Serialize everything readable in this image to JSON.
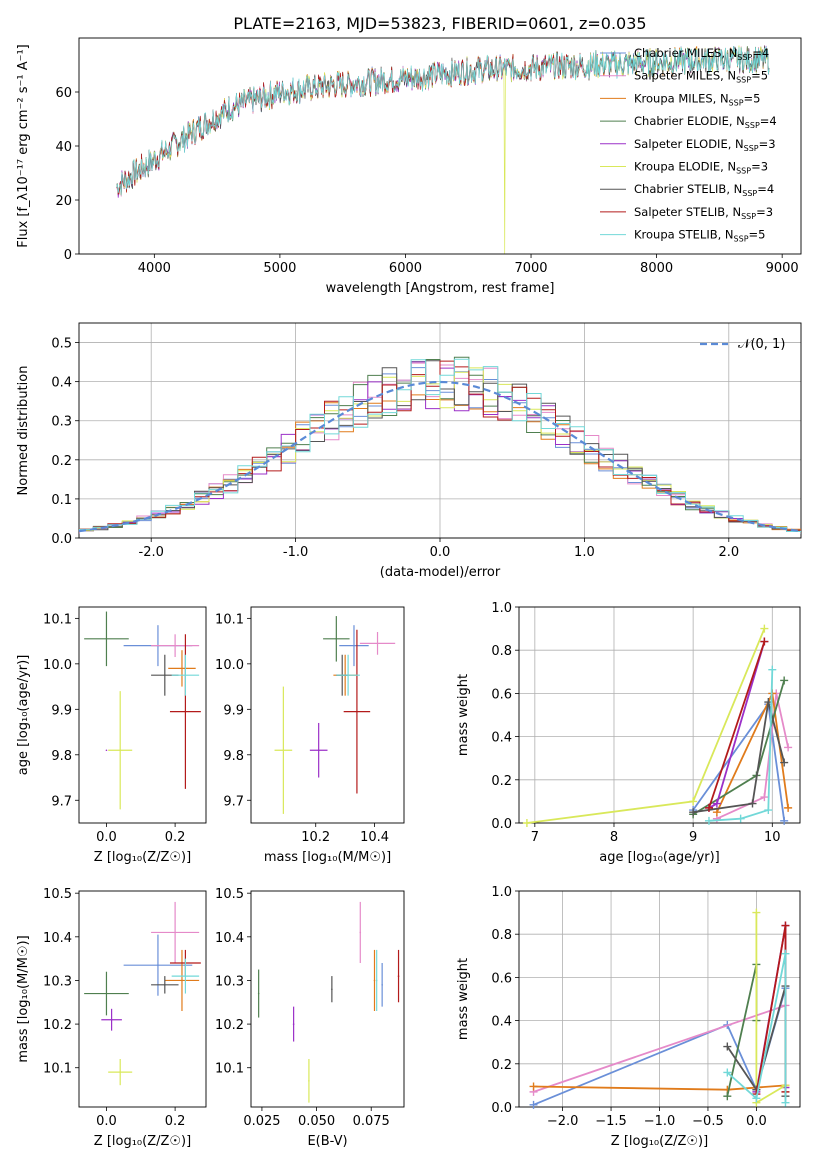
{
  "figure": {
    "title": "PLATE=2163, MJD=53823, FIBERID=0601, z=0.035"
  },
  "models": [
    {
      "name": "Chabrier MILES",
      "nssp": "4",
      "color": "#6a8fd8"
    },
    {
      "name": "Salpeter MILES",
      "nssp": "5",
      "color": "#e58ac9"
    },
    {
      "name": "Kroupa MILES",
      "nssp": "5",
      "color": "#e07b1b"
    },
    {
      "name": "Chabrier ELODIE",
      "nssp": "4",
      "color": "#4f7f4f"
    },
    {
      "name": "Salpeter ELODIE",
      "nssp": "3",
      "color": "#9b30c8"
    },
    {
      "name": "Kroupa ELODIE",
      "nssp": "3",
      "color": "#d9e85a"
    },
    {
      "name": "Chabrier STELIB",
      "nssp": "4",
      "color": "#555555"
    },
    {
      "name": "Salpeter STELIB",
      "nssp": "3",
      "color": "#b31b1b"
    },
    {
      "name": "Kroupa STELIB",
      "nssp": "5",
      "color": "#72d8d8"
    }
  ],
  "chart_data": [
    {
      "id": "spectrum",
      "type": "line",
      "xlabel": "wavelength [Angstrom, rest frame]",
      "ylabel": "Flux [f_λ10⁻¹⁷ erg cm⁻² s⁻¹ A⁻¹]",
      "xlim": [
        3400,
        9150
      ],
      "ylim": [
        0,
        80
      ],
      "xticks": [
        4000,
        5000,
        6000,
        7000,
        8000,
        9000
      ],
      "yticks": [
        0,
        20,
        40,
        60
      ],
      "grid": false,
      "legend": "upper right",
      "continuum_x": [
        3700,
        4000,
        4300,
        4600,
        5000,
        5500,
        6000,
        6500,
        7000,
        7500,
        8000,
        8500,
        8900
      ],
      "continuum_y": [
        25,
        35,
        45,
        54,
        60,
        63,
        65,
        68,
        69,
        70,
        71,
        72,
        72
      ]
    },
    {
      "id": "residuals",
      "type": "histogram",
      "xlabel": "(data-model)/error",
      "ylabel": "Normed distribution",
      "xlim": [
        -2.5,
        2.5
      ],
      "ylim": [
        0,
        0.55
      ],
      "xticks": [
        -2,
        -1,
        0,
        1,
        2
      ],
      "yticks": [
        0.0,
        0.1,
        0.2,
        0.3,
        0.4,
        0.5
      ],
      "grid": true,
      "legend": "upper right",
      "reference": {
        "label": "𝒩(0, 1)",
        "mean": 0,
        "sigma": 1,
        "color": "#5a8ad6"
      },
      "bin_width": 0.1
    },
    {
      "id": "age_vs_Z",
      "type": "scatter",
      "xlabel": "Z [log₁₀(Z/Z☉)]",
      "ylabel": "age  [log₁₀(age/yr)]",
      "xlim": [
        -0.08,
        0.29
      ],
      "ylim": [
        9.65,
        10.125
      ],
      "xticks": [
        0.0,
        0.2
      ],
      "yticks": [
        9.7,
        9.8,
        9.9,
        10.0,
        10.1
      ],
      "points": [
        {
          "x": 0.15,
          "y": 10.04,
          "xerr": 0.1,
          "yerr": 0.045
        },
        {
          "x": 0.2,
          "y": 10.04,
          "xerr": 0.07,
          "yerr": 0.025
        },
        {
          "x": 0.22,
          "y": 9.99,
          "xerr": 0.04,
          "yerr": 0.04
        },
        {
          "x": 0.0,
          "y": 10.055,
          "xerr": 0.065,
          "yerr": 0.06
        },
        {
          "x": 0.0,
          "y": 9.81,
          "xerr": 0.0,
          "yerr": 0.0
        },
        {
          "x": 0.04,
          "y": 9.81,
          "xerr": 0.035,
          "yerr": 0.13
        },
        {
          "x": 0.17,
          "y": 9.975,
          "xerr": 0.04,
          "yerr": 0.045
        },
        {
          "x": 0.23,
          "y": 9.895,
          "xerr": 0.045,
          "yerr": 0.17
        },
        {
          "x": 0.23,
          "y": 9.975,
          "xerr": 0.04,
          "yerr": 0.045
        }
      ]
    },
    {
      "id": "age_vs_mass",
      "type": "scatter",
      "xlabel": "mass [log₁₀(M/M☉)]",
      "ylabel": "",
      "xlim": [
        9.98,
        10.5
      ],
      "ylim": [
        9.65,
        10.125
      ],
      "xticks": [
        10.2,
        10.4
      ],
      "yticks": [
        9.7,
        9.8,
        9.9,
        10.0,
        10.1
      ],
      "points": [
        {
          "x": 10.33,
          "y": 10.04,
          "xerr": 0.05,
          "yerr": 0.045
        },
        {
          "x": 10.41,
          "y": 10.045,
          "xerr": 0.06,
          "yerr": 0.025
        },
        {
          "x": 10.3,
          "y": 9.975,
          "xerr": 0.04,
          "yerr": 0.045
        },
        {
          "x": 10.27,
          "y": 10.055,
          "xerr": 0.045,
          "yerr": 0.05
        },
        {
          "x": 10.21,
          "y": 9.81,
          "xerr": 0.03,
          "yerr": 0.06
        },
        {
          "x": 10.09,
          "y": 9.81,
          "xerr": 0.03,
          "yerr": 0.14
        },
        {
          "x": 10.29,
          "y": 9.975,
          "xerr": 0.02,
          "yerr": 0.045
        },
        {
          "x": 10.34,
          "y": 9.895,
          "xerr": 0.045,
          "yerr": 0.18
        },
        {
          "x": 10.31,
          "y": 9.975,
          "xerr": 0.04,
          "yerr": 0.045
        }
      ]
    },
    {
      "id": "massweight_vs_age",
      "type": "line",
      "xlabel": "age  [log₁₀(age/yr)]",
      "ylabel": "mass weight",
      "xlim": [
        6.8,
        10.35
      ],
      "ylim": [
        0,
        1
      ],
      "xticks": [
        7,
        8,
        9,
        10
      ],
      "yticks": [
        0.0,
        0.2,
        0.4,
        0.6,
        0.8,
        1.0
      ],
      "grid": true,
      "series": [
        {
          "x": [
            9.0,
            9.95,
            10.15
          ],
          "y": [
            0.06,
            0.55,
            0.01
          ]
        },
        {
          "x": [
            9.3,
            9.9,
            10.05,
            10.2
          ],
          "y": [
            0.02,
            0.12,
            0.6,
            0.35
          ]
        },
        {
          "x": [
            9.3,
            10.0,
            10.2
          ],
          "y": [
            0.05,
            0.6,
            0.07
          ]
        },
        {
          "x": [
            9.0,
            9.8,
            10.15
          ],
          "y": [
            0.04,
            0.22,
            0.66
          ]
        },
        {
          "x": [
            9.2,
            9.3,
            9.9
          ],
          "y": [
            0.07,
            0.09,
            0.84
          ]
        },
        {
          "x": [
            6.9,
            9.0,
            9.9
          ],
          "y": [
            0.0,
            0.1,
            0.9
          ]
        },
        {
          "x": [
            9.0,
            9.75,
            9.95,
            10.15
          ],
          "y": [
            0.05,
            0.09,
            0.56,
            0.28
          ]
        },
        {
          "x": [
            9.2,
            9.9
          ],
          "y": [
            0.07,
            0.84
          ]
        },
        {
          "x": [
            9.2,
            9.6,
            9.95,
            10.0
          ],
          "y": [
            0.01,
            0.02,
            0.06,
            0.71
          ]
        }
      ]
    },
    {
      "id": "mass_vs_Z",
      "type": "scatter",
      "xlabel": "Z [log₁₀(Z/Z☉)]",
      "ylabel": "mass [log₁₀(M/M☉)]",
      "xlim": [
        -0.08,
        0.29
      ],
      "ylim": [
        10.01,
        10.505
      ],
      "xticks": [
        0.0,
        0.2
      ],
      "yticks": [
        10.1,
        10.2,
        10.3,
        10.4,
        10.5
      ],
      "points": [
        {
          "x": 0.15,
          "y": 10.335,
          "xerr": 0.1,
          "yerr": 0.07
        },
        {
          "x": 0.2,
          "y": 10.41,
          "xerr": 0.07,
          "yerr": 0.07
        },
        {
          "x": 0.22,
          "y": 10.3,
          "xerr": 0.05,
          "yerr": 0.07
        },
        {
          "x": 0.0,
          "y": 10.27,
          "xerr": 0.065,
          "yerr": 0.05
        },
        {
          "x": 0.015,
          "y": 10.21,
          "xerr": 0.03,
          "yerr": 0.025
        },
        {
          "x": 0.04,
          "y": 10.09,
          "xerr": 0.035,
          "yerr": 0.03
        },
        {
          "x": 0.17,
          "y": 10.29,
          "xerr": 0.04,
          "yerr": 0.02
        },
        {
          "x": 0.23,
          "y": 10.34,
          "xerr": 0.045,
          "yerr": 0.03
        },
        {
          "x": 0.23,
          "y": 10.31,
          "xerr": 0.04,
          "yerr": 0.04
        }
      ]
    },
    {
      "id": "mass_vs_ebv",
      "type": "scatter",
      "xlabel": "E(B-V)",
      "ylabel": "",
      "xlim": [
        0.02,
        0.09
      ],
      "ylim": [
        10.01,
        10.505
      ],
      "xticks": [
        0.025,
        0.05,
        0.075
      ],
      "yticks": [
        10.1,
        10.2,
        10.3,
        10.4,
        10.5
      ],
      "points": [
        {
          "x": 0.08,
          "y": 10.29,
          "xerr": 0.0,
          "yerr": 0.05
        },
        {
          "x": 0.07,
          "y": 10.41,
          "xerr": 0.0,
          "yerr": 0.07
        },
        {
          "x": 0.0765,
          "y": 10.3,
          "xerr": 0.0,
          "yerr": 0.07
        },
        {
          "x": 0.0235,
          "y": 10.27,
          "xerr": 0.0,
          "yerr": 0.055
        },
        {
          "x": 0.0395,
          "y": 10.2,
          "xerr": 0.0,
          "yerr": 0.04
        },
        {
          "x": 0.0465,
          "y": 10.07,
          "xerr": 0.0,
          "yerr": 0.05
        },
        {
          "x": 0.057,
          "y": 10.28,
          "xerr": 0.0,
          "yerr": 0.03
        },
        {
          "x": 0.0875,
          "y": 10.31,
          "xerr": 0.0,
          "yerr": 0.06
        },
        {
          "x": 0.0775,
          "y": 10.3,
          "xerr": 0.0,
          "yerr": 0.07
        }
      ]
    },
    {
      "id": "massweight_vs_Z",
      "type": "line",
      "xlabel": "Z [log₁₀(Z/Z☉)]",
      "ylabel": "mass weight",
      "xlim": [
        -2.45,
        0.45
      ],
      "ylim": [
        0,
        1
      ],
      "xticks": [
        -2.0,
        -1.5,
        -1.0,
        -0.5,
        0.0
      ],
      "yticks": [
        0.0,
        0.2,
        0.4,
        0.6,
        0.8,
        1.0
      ],
      "grid": true,
      "series": [
        {
          "x": [
            -2.3,
            -0.3,
            0.0,
            0.3
          ],
          "y": [
            0.01,
            0.38,
            0.08,
            0.55
          ]
        },
        {
          "x": [
            -2.3,
            0.3,
            0.3
          ],
          "y": [
            0.07,
            0.47,
            0.1
          ]
        },
        {
          "x": [
            -2.3,
            -0.3,
            0.3
          ],
          "y": [
            0.095,
            0.08,
            0.1
          ]
        },
        {
          "x": [
            -0.3,
            0.0,
            0.0
          ],
          "y": [
            0.05,
            0.66,
            0.4
          ]
        },
        {
          "x": [
            0.0,
            0.3,
            0.3
          ],
          "y": [
            0.07,
            0.84,
            0.09
          ]
        },
        {
          "x": [
            0.0,
            0.0,
            0.3
          ],
          "y": [
            0.9,
            0.02,
            0.1
          ]
        },
        {
          "x": [
            -0.3,
            0.0,
            0.3,
            0.3
          ],
          "y": [
            0.28,
            0.08,
            0.56,
            0.05
          ]
        },
        {
          "x": [
            0.0,
            0.3,
            0.3
          ],
          "y": [
            0.06,
            0.84,
            0.07
          ]
        },
        {
          "x": [
            -0.3,
            0.0,
            0.3,
            0.3
          ],
          "y": [
            0.16,
            0.04,
            0.71,
            0.02
          ]
        }
      ]
    }
  ]
}
